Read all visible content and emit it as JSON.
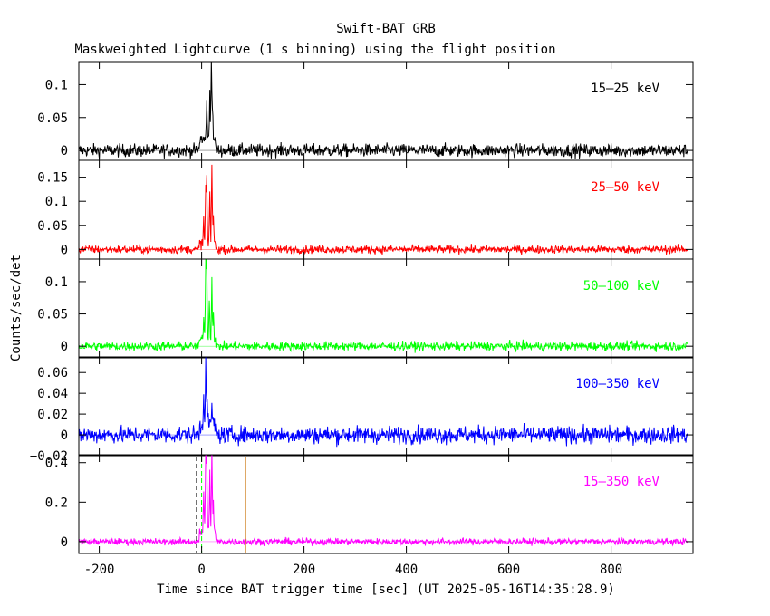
{
  "title": "Swift-BAT GRB",
  "subtitle": "Maskweighted Lightcurve (1 s binning) using the flight position",
  "chart_data": {
    "type": "line",
    "xlabel": "Time since BAT trigger time [sec] (UT 2025-05-16T14:35:28.9)",
    "ylabel": "Counts/sec/det",
    "xlim": [
      -240,
      960
    ],
    "x_ticks": [
      "-200",
      "0",
      "200",
      "400",
      "600",
      "800"
    ],
    "panels": [
      {
        "label": "15–25 keV",
        "color": "#000000",
        "ylim": [
          -0.015,
          0.135
        ],
        "y_ticks": [
          "0",
          "0.05",
          "0.1"
        ],
        "noise": 0.007,
        "peaks": [
          [
            10,
            0.065
          ],
          [
            16,
            0.075
          ],
          [
            19,
            0.12
          ],
          [
            21,
            0.05
          ]
        ]
      },
      {
        "label": "25–50 keV",
        "color": "#ff0000",
        "ylim": [
          -0.02,
          0.185
        ],
        "y_ticks": [
          "0",
          "0.05",
          "0.1",
          "0.15"
        ],
        "noise": 0.006,
        "peaks": [
          [
            4,
            0.05
          ],
          [
            8,
            0.12
          ],
          [
            10,
            0.13
          ],
          [
            16,
            0.1
          ],
          [
            20,
            0.17
          ],
          [
            23,
            0.06
          ]
        ]
      },
      {
        "label": "50–100 keV",
        "color": "#00ff00",
        "ylim": [
          -0.018,
          0.135
        ],
        "y_ticks": [
          "0",
          "0.05",
          "0.1"
        ],
        "noise": 0.005,
        "peaks": [
          [
            4,
            0.04
          ],
          [
            8,
            0.12
          ],
          [
            10,
            0.13
          ],
          [
            15,
            0.07
          ],
          [
            20,
            0.095
          ],
          [
            23,
            0.05
          ]
        ]
      },
      {
        "label": "100–350 keV",
        "color": "#0000ff",
        "ylim": [
          -0.02,
          0.075
        ],
        "y_ticks": [
          "−0.02",
          "0",
          "0.02",
          "0.04",
          "0.06"
        ],
        "noise": 0.006,
        "peaks": [
          [
            4,
            0.035
          ],
          [
            8,
            0.07
          ],
          [
            11,
            0.03
          ],
          [
            20,
            0.025
          ]
        ]
      },
      {
        "label": "15–350 keV",
        "color": "#ff00ff",
        "ylim": [
          -0.06,
          0.44
        ],
        "y_ticks": [
          "0",
          "0.2",
          "0.4"
        ],
        "noise": 0.012,
        "peaks": [
          [
            4,
            0.2
          ],
          [
            8,
            0.42
          ],
          [
            10,
            0.4
          ],
          [
            16,
            0.3
          ],
          [
            20,
            0.44
          ],
          [
            23,
            0.15
          ]
        ]
      }
    ],
    "markers": [
      {
        "x": -10,
        "style": "dashed",
        "color": "#000000"
      },
      {
        "x": 0,
        "style": "dashed",
        "color": "#00ff00"
      },
      {
        "x": 86,
        "style": "solid",
        "color": "#d08020"
      }
    ]
  }
}
